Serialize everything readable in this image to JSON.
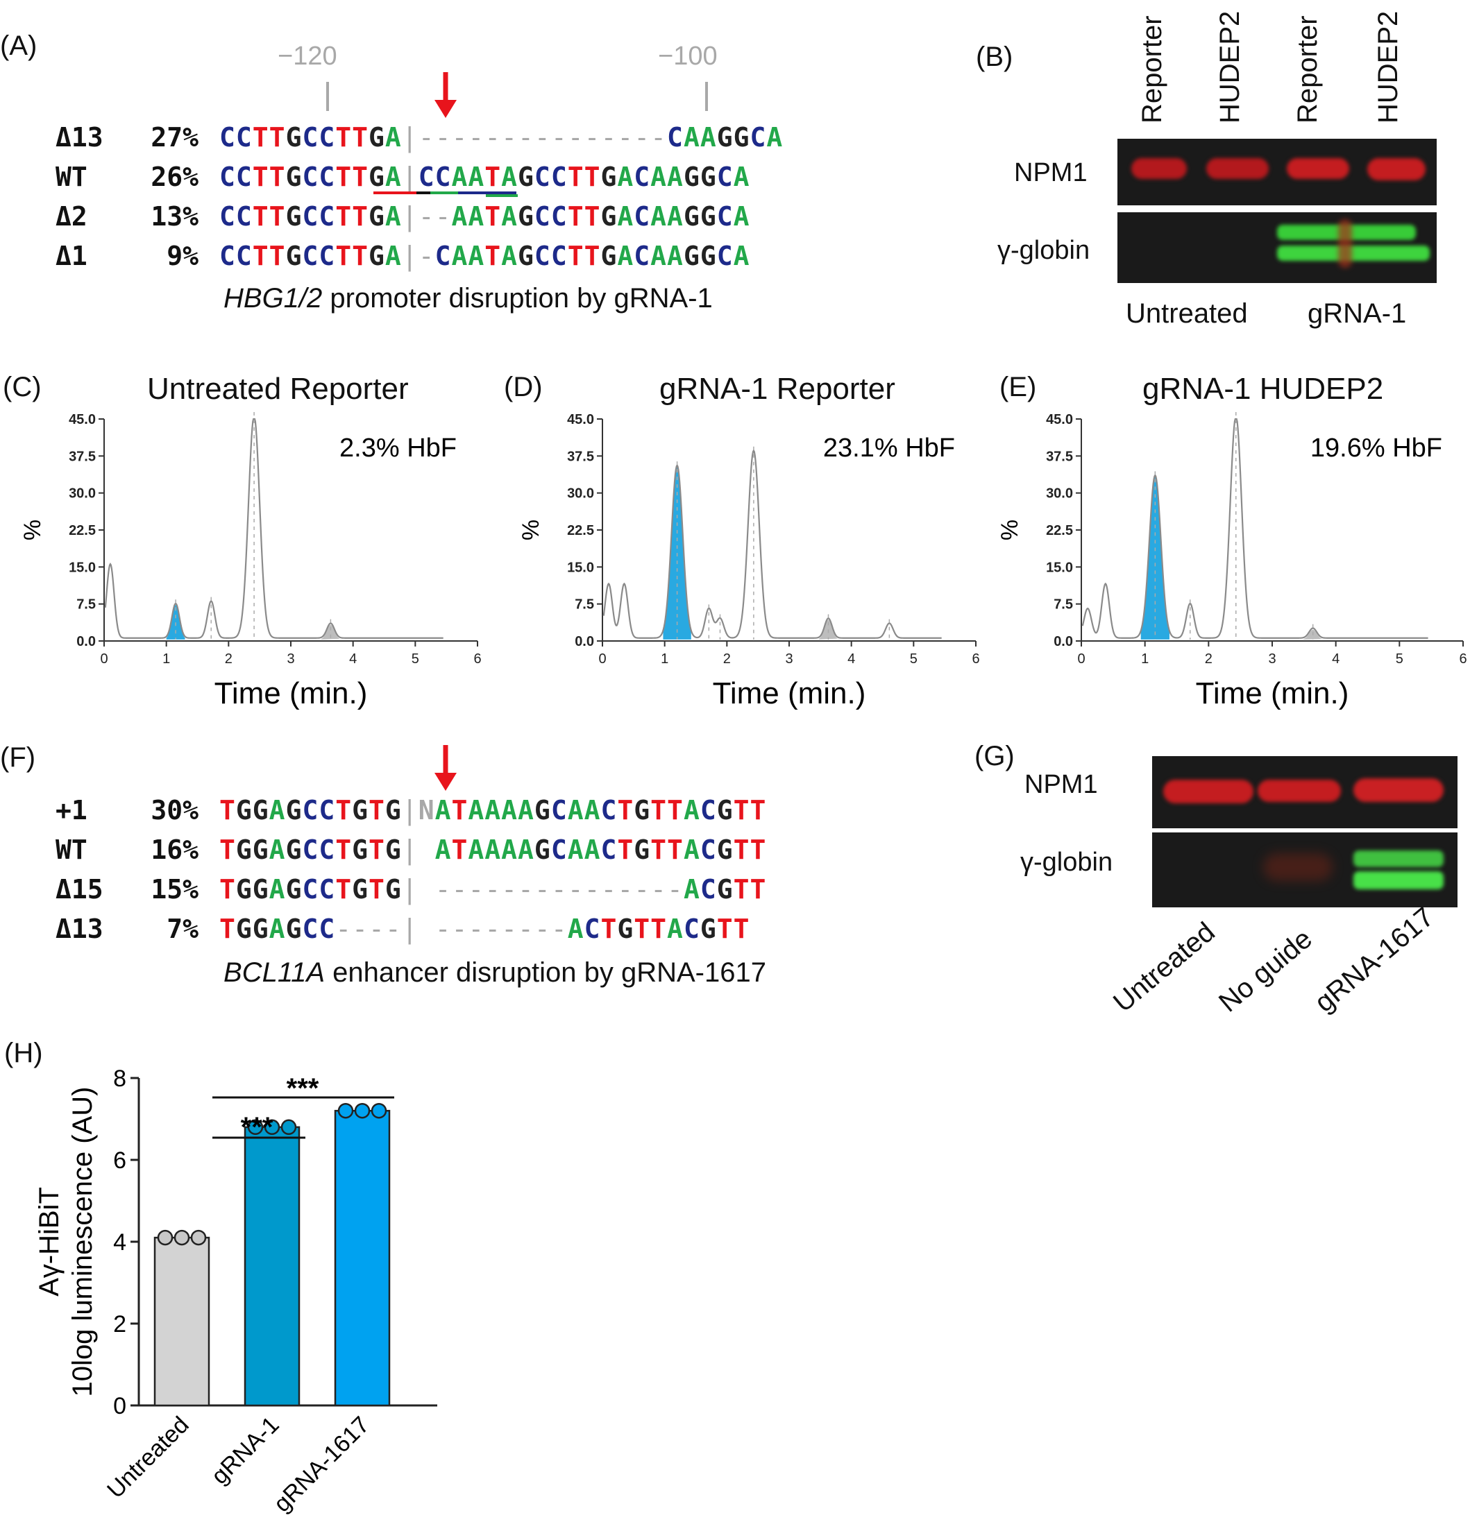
{
  "panels": {
    "A": {
      "label": "(A)",
      "positions": [
        "−120",
        "−100"
      ],
      "rows": [
        {
          "name": "Δ13",
          "pct": "27%",
          "seq": "CCTTGCCTTGA|---------------CAAGGCA"
        },
        {
          "name": "WT",
          "pct": "26%",
          "seq": "CCTTGCCTTGA|CCAATAGCCTTGACAAGGCA"
        },
        {
          "name": "Δ2",
          "pct": "13%",
          "seq": "CCTTGCCTTGA|--AATAGCCTTGACAAGGCA"
        },
        {
          "name": "Δ1",
          "pct": "9%",
          "seq": "CCTTGCCTTGA|-CAATAGCCTTGACAAGGCA"
        }
      ],
      "caption_italic": "HBG1/2",
      "caption_rest": " promoter disruption by gRNA-1"
    },
    "B": {
      "label": "(B)",
      "lanes": [
        "Reporter",
        "HUDEP2",
        "Reporter",
        "HUDEP2"
      ],
      "rows": [
        "NPM1",
        "γ-globin"
      ],
      "groups": [
        "Untreated",
        "gRNA-1"
      ]
    },
    "C": {
      "label": "(C)",
      "title": "Untreated Reporter",
      "hbf": "2.3% HbF"
    },
    "D": {
      "label": "(D)",
      "title": "gRNA-1 Reporter",
      "hbf": "23.1% HbF"
    },
    "E": {
      "label": "(E)",
      "title": "gRNA-1 HUDEP2",
      "hbf": "19.6% HbF"
    },
    "hplc_axes": {
      "ylabel": "%",
      "xlabel": "Time (min.)",
      "yticks": [
        "45.0",
        "37.5",
        "30.0",
        "22.5",
        "15.0",
        "7.5",
        "0.0"
      ],
      "xticks": [
        "0",
        "1",
        "2",
        "3",
        "4",
        "5",
        "6"
      ]
    },
    "F": {
      "label": "(F)",
      "rows": [
        {
          "name": "+1",
          "pct": "30%",
          "seq": "TGGAGCCTGTG|NATAAAAGCAACTGTTACGTT"
        },
        {
          "name": "WT",
          "pct": "16%",
          "seq": "TGGAGCCTGTG| ATAAAAGCAACTGTTACGTT"
        },
        {
          "name": "Δ15",
          "pct": "15%",
          "seq": "TGGAGCCTGTG| ---------------ACGTT"
        },
        {
          "name": "Δ13",
          "pct": "7%",
          "seq": "TGGAGCC----| --------ACTGTTACGTT"
        }
      ],
      "caption_italic": "BCL11A",
      "caption_rest": " enhancer disruption by gRNA-1617"
    },
    "G": {
      "label": "(G)",
      "rows": [
        "NPM1",
        "γ-globin"
      ],
      "lanes": [
        "Untreated",
        "No guide",
        "gRNA-1617"
      ]
    },
    "H": {
      "label": "(H)",
      "sig": [
        "***",
        "***"
      ],
      "ylabel_line1": "Aγ-HiBiT",
      "ylabel_line2": "10log luminescence (AU)"
    }
  },
  "chart_data": [
    {
      "type": "line",
      "title": "Untreated Reporter",
      "xlabel": "Time (min.)",
      "ylabel": "%",
      "xlim": [
        0,
        6
      ],
      "ylim": [
        0,
        45
      ],
      "annotation": "2.3% HbF",
      "peaks": [
        {
          "x": 0.1,
          "y": 15
        },
        {
          "x": 1.15,
          "y": 7
        },
        {
          "x": 1.72,
          "y": 7.5
        },
        {
          "x": 2.41,
          "y": 45
        },
        {
          "x": 3.64,
          "y": 3
        }
      ]
    },
    {
      "type": "line",
      "title": "gRNA-1 Reporter",
      "xlabel": "Time (min.)",
      "ylabel": "%",
      "xlim": [
        0,
        6
      ],
      "ylim": [
        0,
        45
      ],
      "annotation": "23.1% HbF",
      "peaks": [
        {
          "x": 0.1,
          "y": 11
        },
        {
          "x": 0.35,
          "y": 11
        },
        {
          "x": 1.2,
          "y": 35
        },
        {
          "x": 1.71,
          "y": 6
        },
        {
          "x": 1.89,
          "y": 4
        },
        {
          "x": 2.43,
          "y": 38
        },
        {
          "x": 3.63,
          "y": 4
        },
        {
          "x": 4.61,
          "y": 3
        }
      ]
    },
    {
      "type": "line",
      "title": "gRNA-1 HUDEP2",
      "xlabel": "Time (min.)",
      "ylabel": "%",
      "xlim": [
        0,
        6
      ],
      "ylim": [
        0,
        45
      ],
      "annotation": "19.6% HbF",
      "peaks": [
        {
          "x": 0.1,
          "y": 6
        },
        {
          "x": 0.38,
          "y": 11
        },
        {
          "x": 1.16,
          "y": 33
        },
        {
          "x": 1.71,
          "y": 7
        },
        {
          "x": 2.43,
          "y": 45
        },
        {
          "x": 3.64,
          "y": 2
        }
      ]
    },
    {
      "type": "bar",
      "categories": [
        "Untreated",
        "gRNA-1",
        "gRNA-1617"
      ],
      "values": [
        4.1,
        6.8,
        7.2
      ],
      "points": [
        [
          4.1,
          4.1,
          4.1
        ],
        [
          6.8,
          6.8,
          6.8
        ],
        [
          7.2,
          7.2,
          7.2
        ]
      ],
      "ylim": [
        0,
        8
      ],
      "yticks": [
        0,
        2,
        4,
        6,
        8
      ],
      "colors": [
        "#d3d3d3",
        "#0099cc",
        "#00a2f0"
      ]
    }
  ]
}
